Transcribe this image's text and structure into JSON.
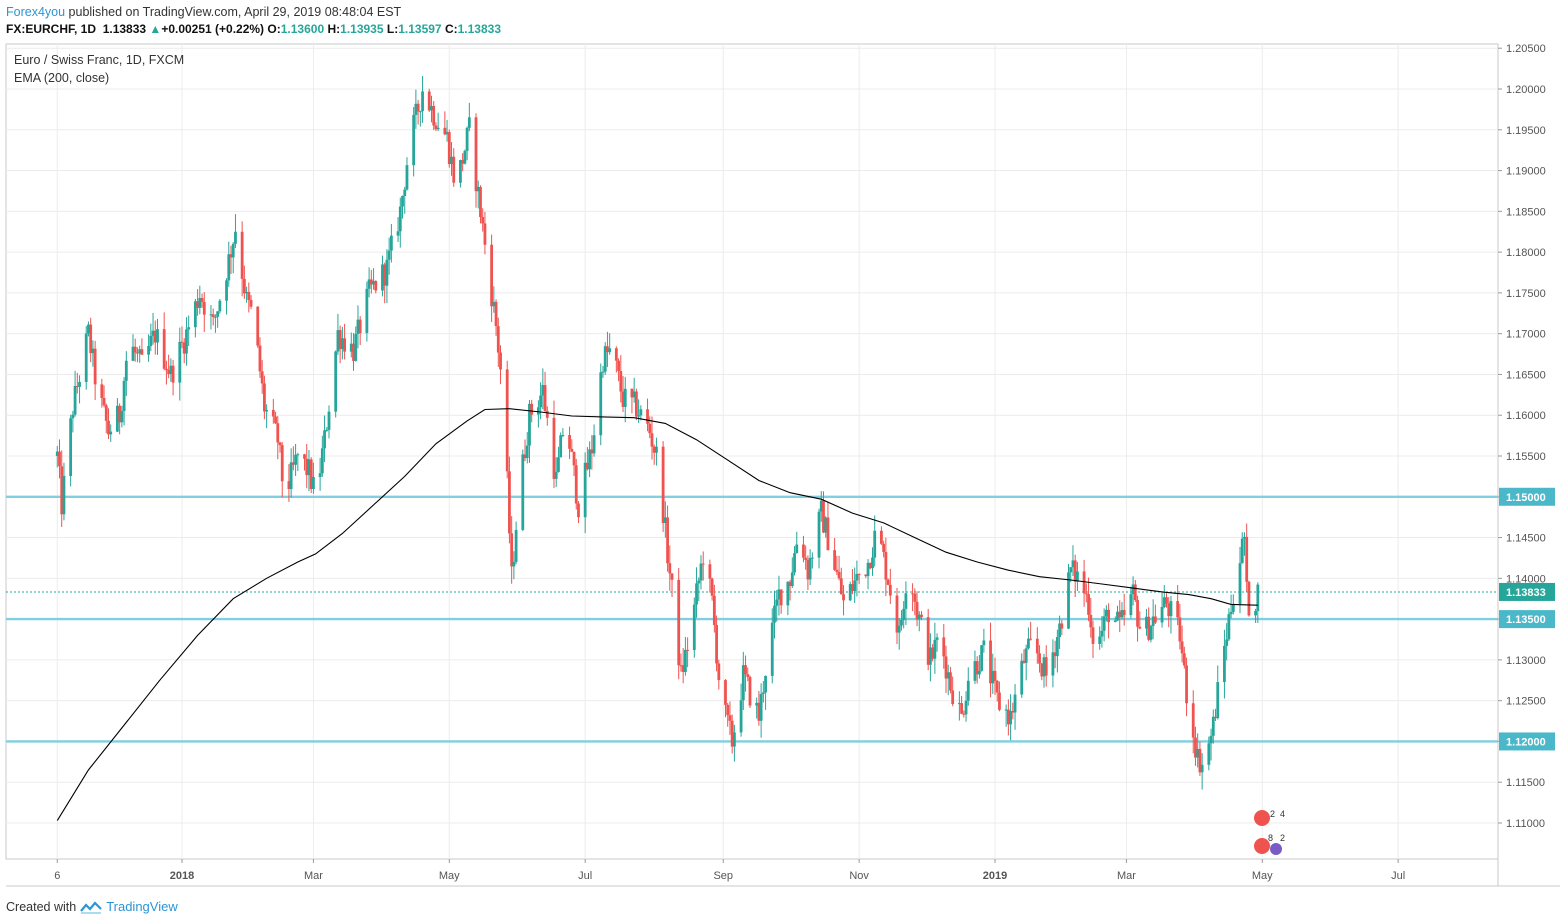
{
  "header": {
    "author": "Forex4you",
    "published_text": "published on TradingView.com, April 29, 2019 08:48:04 EST",
    "symbol": "FX:EURCHF, 1D",
    "last": "1.13833",
    "change": "+0.00251 (+0.22%)",
    "open_label": "O:",
    "open": "1.13600",
    "high_label": "H:",
    "high": "1.13935",
    "low_label": "L:",
    "low": "1.13597",
    "close_label": "C:",
    "close": "1.13833"
  },
  "legend": {
    "series_name": "Euro / Swiss Franc, 1D, FXCM",
    "indicator": "EMA (200, close)"
  },
  "footer": {
    "created_with": "Created with",
    "brand": "TradingView"
  },
  "colors": {
    "up": "#26a69a",
    "down": "#ef5350",
    "ema": "#000000",
    "hline": "#7fcfe0",
    "last_price_label": "#26a69a",
    "level_label": "#4bb8c9"
  },
  "event_badges": [
    "2",
    "4",
    "8",
    "2"
  ],
  "chart_data": {
    "type": "candlestick",
    "title": "Euro / Swiss Franc, 1D, FXCM",
    "ylim": [
      1.106,
      1.2055
    ],
    "y_ticks": [
      "1.11000",
      "1.11500",
      "1.12000",
      "1.12500",
      "1.13000",
      "1.13500",
      "1.14000",
      "1.14500",
      "1.15000",
      "1.15500",
      "1.16000",
      "1.16500",
      "1.17000",
      "1.17500",
      "1.18000",
      "1.18500",
      "1.19000",
      "1.19500",
      "1.20000",
      "1.20500"
    ],
    "x_ticks": [
      "6",
      "2018",
      "Mar",
      "May",
      "Jul",
      "Sep",
      "Nov",
      "2019",
      "Mar",
      "May",
      "Jul"
    ],
    "horizontal_levels": [
      {
        "label": "1.15000",
        "value": 1.15
      },
      {
        "label": "1.13500",
        "value": 1.135
      },
      {
        "label": "1.12000",
        "value": 1.12
      }
    ],
    "last_price": {
      "label": "1.13833",
      "value": 1.13833
    },
    "price_path": [
      [
        "2017-11-06",
        1.155
      ],
      [
        "2017-11-08",
        1.149
      ],
      [
        "2017-11-13",
        1.161
      ],
      [
        "2017-11-20",
        1.17
      ],
      [
        "2017-11-24",
        1.163
      ],
      [
        "2017-11-29",
        1.158
      ],
      [
        "2017-12-04",
        1.16
      ],
      [
        "2017-12-08",
        1.169
      ],
      [
        "2017-12-14",
        1.166
      ],
      [
        "2017-12-20",
        1.17
      ],
      [
        "2017-12-27",
        1.165
      ],
      [
        "2018-01-03",
        1.17
      ],
      [
        "2018-01-09",
        1.175
      ],
      [
        "2018-01-15",
        1.171
      ],
      [
        "2018-01-22",
        1.179
      ],
      [
        "2018-01-25",
        1.183
      ],
      [
        "2018-01-30",
        1.174
      ],
      [
        "2018-02-02",
        1.172
      ],
      [
        "2018-02-07",
        1.161
      ],
      [
        "2018-02-13",
        1.157
      ],
      [
        "2018-02-16",
        1.15
      ],
      [
        "2018-02-22",
        1.155
      ],
      [
        "2018-02-27",
        1.153
      ],
      [
        "2018-03-02",
        1.15
      ],
      [
        "2018-03-06",
        1.157
      ],
      [
        "2018-03-12",
        1.17
      ],
      [
        "2018-03-19",
        1.168
      ],
      [
        "2018-03-26",
        1.175
      ],
      [
        "2018-04-03",
        1.178
      ],
      [
        "2018-04-09",
        1.185
      ],
      [
        "2018-04-13",
        1.193
      ],
      [
        "2018-04-19",
        1.2
      ],
      [
        "2018-04-24",
        1.197
      ],
      [
        "2018-04-30",
        1.194
      ],
      [
        "2018-05-04",
        1.188
      ],
      [
        "2018-05-10",
        1.195
      ],
      [
        "2018-05-16",
        1.183
      ],
      [
        "2018-05-22",
        1.171
      ],
      [
        "2018-05-25",
        1.163
      ],
      [
        "2018-05-29",
        1.14
      ],
      [
        "2018-06-01",
        1.15
      ],
      [
        "2018-06-06",
        1.16
      ],
      [
        "2018-06-12",
        1.163
      ],
      [
        "2018-06-18",
        1.152
      ],
      [
        "2018-06-22",
        1.16
      ],
      [
        "2018-06-28",
        1.149
      ],
      [
        "2018-07-04",
        1.156
      ],
      [
        "2018-07-09",
        1.167
      ],
      [
        "2018-07-13",
        1.168
      ],
      [
        "2018-07-18",
        1.162
      ],
      [
        "2018-07-24",
        1.161
      ],
      [
        "2018-07-30",
        1.158
      ],
      [
        "2018-08-03",
        1.154
      ],
      [
        "2018-08-07",
        1.143
      ],
      [
        "2018-08-10",
        1.136
      ],
      [
        "2018-08-13",
        1.128
      ],
      [
        "2018-08-17",
        1.133
      ],
      [
        "2018-08-23",
        1.143
      ],
      [
        "2018-08-27",
        1.137
      ],
      [
        "2018-08-31",
        1.125
      ],
      [
        "2018-09-05",
        1.12
      ],
      [
        "2018-09-10",
        1.128
      ],
      [
        "2018-09-17",
        1.123
      ],
      [
        "2018-09-21",
        1.131
      ],
      [
        "2018-09-26",
        1.138
      ],
      [
        "2018-10-01",
        1.14
      ],
      [
        "2018-10-05",
        1.146
      ],
      [
        "2018-10-09",
        1.141
      ],
      [
        "2018-10-15",
        1.148
      ],
      [
        "2018-10-19",
        1.144
      ],
      [
        "2018-10-25",
        1.137
      ],
      [
        "2018-10-31",
        1.14
      ],
      [
        "2018-11-05",
        1.142
      ],
      [
        "2018-11-09",
        1.146
      ],
      [
        "2018-11-14",
        1.14
      ],
      [
        "2018-11-19",
        1.133
      ],
      [
        "2018-11-23",
        1.142
      ],
      [
        "2018-11-27",
        1.136
      ],
      [
        "2018-12-03",
        1.13
      ],
      [
        "2018-12-07",
        1.133
      ],
      [
        "2018-12-12",
        1.127
      ],
      [
        "2018-12-17",
        1.123
      ],
      [
        "2018-12-20",
        1.128
      ],
      [
        "2018-12-27",
        1.131
      ],
      [
        "2019-01-02",
        1.125
      ],
      [
        "2019-01-08",
        1.123
      ],
      [
        "2019-01-14",
        1.13
      ],
      [
        "2019-01-18",
        1.132
      ],
      [
        "2019-01-24",
        1.128
      ],
      [
        "2019-01-30",
        1.134
      ],
      [
        "2019-02-04",
        1.141
      ],
      [
        "2019-02-08",
        1.14
      ],
      [
        "2019-02-12",
        1.137
      ],
      [
        "2019-02-15",
        1.131
      ],
      [
        "2019-02-21",
        1.136
      ],
      [
        "2019-02-26",
        1.134
      ],
      [
        "2019-03-04",
        1.138
      ],
      [
        "2019-03-08",
        1.133
      ],
      [
        "2019-03-13",
        1.135
      ],
      [
        "2019-03-19",
        1.137
      ],
      [
        "2019-03-25",
        1.133
      ],
      [
        "2019-03-28",
        1.126
      ],
      [
        "2019-04-02",
        1.118
      ],
      [
        "2019-04-05",
        1.117
      ],
      [
        "2019-04-09",
        1.122
      ],
      [
        "2019-04-12",
        1.128
      ],
      [
        "2019-04-16",
        1.135
      ],
      [
        "2019-04-19",
        1.14
      ],
      [
        "2019-04-23",
        1.145
      ],
      [
        "2019-04-24",
        1.138
      ],
      [
        "2019-04-26",
        1.1358
      ],
      [
        "2019-04-29",
        1.1383
      ]
    ],
    "ema_path": [
      [
        "2017-11-06",
        1.1103
      ],
      [
        "2017-11-20",
        1.1165
      ],
      [
        "2017-12-06",
        1.122
      ],
      [
        "2017-12-22",
        1.1275
      ],
      [
        "2018-01-08",
        1.133
      ],
      [
        "2018-01-24",
        1.1375
      ],
      [
        "2018-02-08",
        1.14
      ],
      [
        "2018-02-22",
        1.142
      ],
      [
        "2018-03-02",
        1.143
      ],
      [
        "2018-03-14",
        1.1455
      ],
      [
        "2018-03-28",
        1.149
      ],
      [
        "2018-04-11",
        1.1525
      ],
      [
        "2018-04-25",
        1.1565
      ],
      [
        "2018-05-09",
        1.1593
      ],
      [
        "2018-05-17",
        1.1607
      ],
      [
        "2018-05-28",
        1.1608
      ],
      [
        "2018-06-11",
        1.1604
      ],
      [
        "2018-06-25",
        1.1599
      ],
      [
        "2018-07-09",
        1.1598
      ],
      [
        "2018-07-23",
        1.1597
      ],
      [
        "2018-08-06",
        1.159
      ],
      [
        "2018-08-20",
        1.157
      ],
      [
        "2018-09-03",
        1.1545
      ],
      [
        "2018-09-17",
        1.152
      ],
      [
        "2018-10-01",
        1.1505
      ],
      [
        "2018-10-15",
        1.1497
      ],
      [
        "2018-10-29",
        1.148
      ],
      [
        "2018-11-12",
        1.1468
      ],
      [
        "2018-11-26",
        1.145
      ],
      [
        "2018-12-10",
        1.1432
      ],
      [
        "2018-12-24",
        1.142
      ],
      [
        "2019-01-07",
        1.141
      ],
      [
        "2019-01-21",
        1.1402
      ],
      [
        "2019-02-04",
        1.1398
      ],
      [
        "2019-02-18",
        1.1393
      ],
      [
        "2019-03-04",
        1.1388
      ],
      [
        "2019-03-18",
        1.1383
      ],
      [
        "2019-03-29",
        1.138
      ],
      [
        "2019-04-08",
        1.1375
      ],
      [
        "2019-04-17",
        1.1368
      ],
      [
        "2019-04-29",
        1.1367
      ]
    ]
  }
}
